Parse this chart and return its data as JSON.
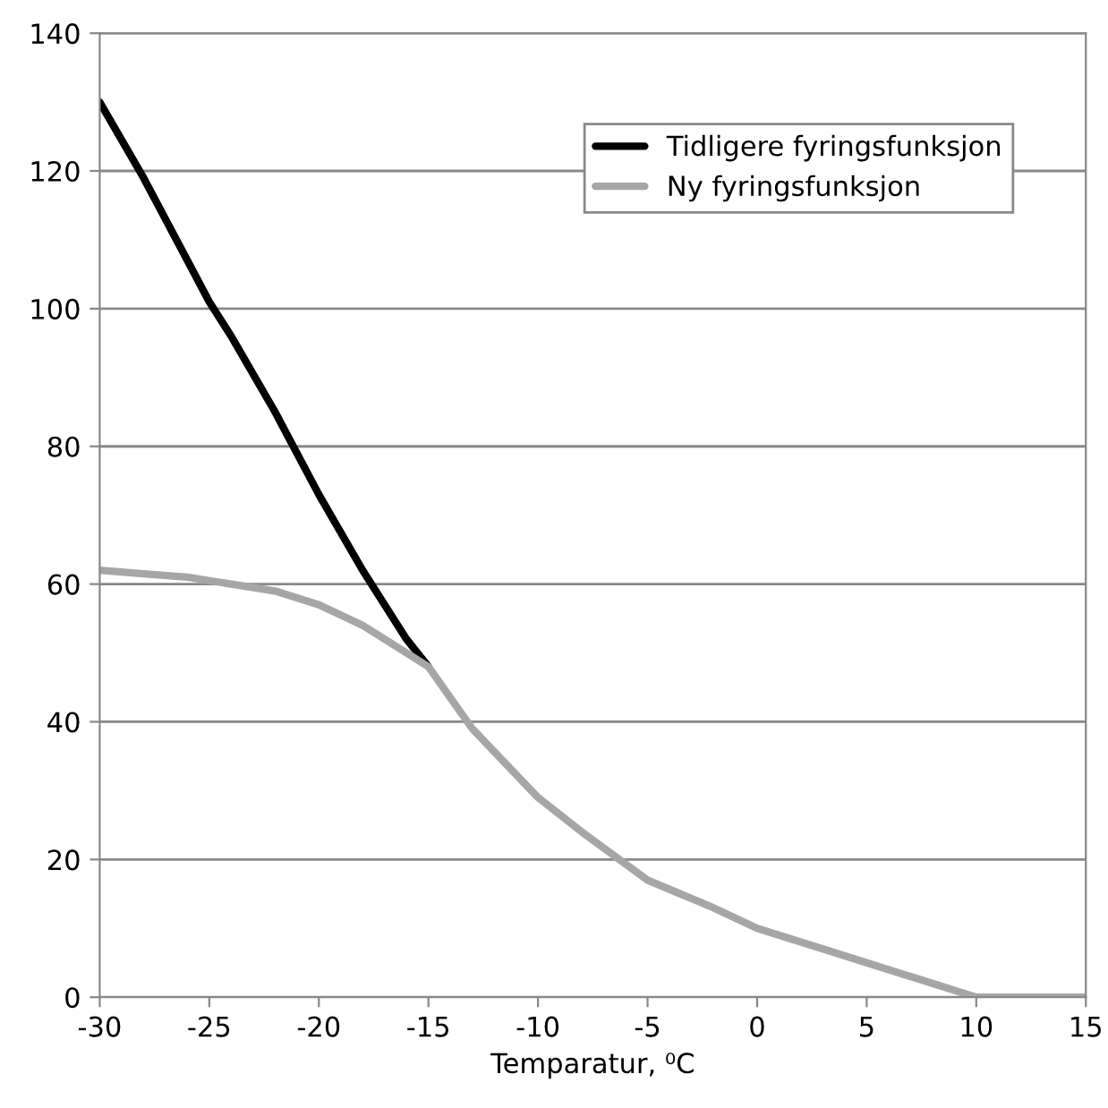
{
  "chart_data": {
    "type": "line",
    "xlabel": "Temparatur, ⁰C",
    "xlim": [
      -30,
      15
    ],
    "xticks": [
      -30,
      -25,
      -20,
      -15,
      -10,
      -5,
      0,
      5,
      10,
      15
    ],
    "ylim": [
      0,
      140
    ],
    "yticks": [
      0,
      20,
      40,
      60,
      80,
      100,
      120,
      140
    ],
    "grid": "y",
    "legend": "top right",
    "marker": "none",
    "line_style": "solid",
    "series": [
      {
        "name": "Tidligere fyringsfunksjon",
        "color": "#000000",
        "x": [
          -30,
          -28,
          -26,
          -25,
          -24,
          -22,
          -20,
          -18,
          -16,
          -15
        ],
        "values": [
          130,
          119,
          107,
          101,
          96,
          85,
          73,
          62,
          52,
          48
        ]
      },
      {
        "name": "Ny fyringsfunksjon",
        "color": "#a6a6a6",
        "x": [
          -30,
          -28,
          -26,
          -25,
          -24,
          -22,
          -20,
          -18,
          -16,
          -15,
          -13,
          -10,
          -8,
          -5,
          -2,
          0,
          3,
          5,
          8,
          10,
          12,
          15
        ],
        "values": [
          62,
          61.5,
          61,
          60.5,
          60,
          59,
          57,
          54,
          50,
          48,
          39,
          29,
          24,
          17,
          13,
          10,
          7,
          5,
          2,
          0,
          0,
          0
        ]
      }
    ]
  }
}
